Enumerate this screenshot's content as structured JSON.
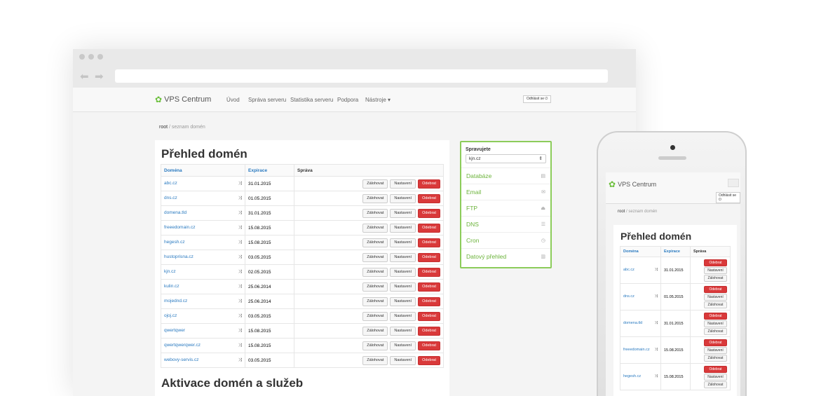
{
  "app": {
    "logo": "VPS Centrum",
    "logout_label": "Odhlásit se"
  },
  "nav": [
    "Úvod",
    "Správa serveru",
    "Statistika serveru",
    "Podpora",
    "Nástroje ▾"
  ],
  "breadcrumb": {
    "root": "root",
    "current": "seznam domén"
  },
  "main": {
    "title": "Přehled domén",
    "second_title": "Aktivace domén a služeb",
    "columns": [
      "Doména",
      "Expirace",
      "Správa"
    ],
    "buttons": {
      "backup": "Zálohovat",
      "settings": "Nastavení",
      "remove": "Odebrat"
    },
    "rows": [
      [
        "abc.cz",
        "31.01.2015"
      ],
      [
        "dns.cz",
        "01.05.2015"
      ],
      [
        "domena.tld",
        "31.01.2015"
      ],
      [
        "freeedomain.cz",
        "15.08.2015"
      ],
      [
        "hegesh.cz",
        "15.08.2015"
      ],
      [
        "hustoprisna.cz",
        "03.05.2015"
      ],
      [
        "kjn.cz",
        "02.05.2015"
      ],
      [
        "kulin.cz",
        "25.06.2014"
      ],
      [
        "mojednd.cz",
        "25.06.2014"
      ],
      [
        "ojoj.cz",
        "03.05.2015"
      ],
      [
        "qwertqwer",
        "15.08.2015"
      ],
      [
        "qwertqwerqwer.cz",
        "15.08.2015"
      ],
      [
        "webovy-servis.cz",
        "03.05.2015"
      ]
    ]
  },
  "sidebar": {
    "label": "Spravujete",
    "selected": "kjn.cz",
    "items": [
      {
        "label": "Databáze",
        "icon": "database-icon"
      },
      {
        "label": "Email",
        "icon": "envelope-icon"
      },
      {
        "label": "FTP",
        "icon": "upload-icon"
      },
      {
        "label": "DNS",
        "icon": "list-icon"
      },
      {
        "label": "Cron",
        "icon": "clock-icon"
      },
      {
        "label": "Datový přehled",
        "icon": "chart-icon"
      }
    ]
  },
  "colors": {
    "link": "#2a7ac0",
    "accent_green": "#6bb33a",
    "danger": "#d9393a"
  }
}
